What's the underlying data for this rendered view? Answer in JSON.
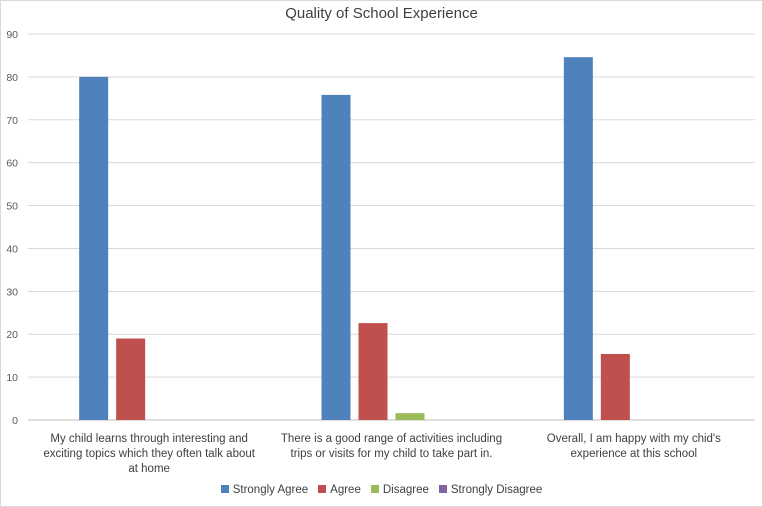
{
  "chart_data": {
    "type": "bar",
    "title": "Quality of School Experience",
    "xlabel": "",
    "ylabel": "",
    "ylim": [
      0,
      90
    ],
    "yticks": [
      0,
      10,
      20,
      30,
      40,
      50,
      60,
      70,
      80,
      90
    ],
    "grid": true,
    "legend_position": "bottom",
    "categories": [
      [
        "My child learns through interesting and",
        "exciting topics which they often talk about",
        "at home"
      ],
      [
        "There is a good range of activities including",
        "trips or visits for my child to take part in."
      ],
      [
        "Overall, I am happy with my chid's",
        "experience at this school"
      ]
    ],
    "series": [
      {
        "name": "Strongly Agree",
        "color": "#4f81bd",
        "values": [
          80,
          75.8,
          84.6
        ]
      },
      {
        "name": "Agree",
        "color": "#c0504d",
        "values": [
          19,
          22.6,
          15.4
        ]
      },
      {
        "name": "Disagree",
        "color": "#9bbb59",
        "values": [
          0,
          1.6,
          0
        ]
      },
      {
        "name": "Strongly Disagree",
        "color": "#8064a2",
        "values": [
          0,
          0,
          0
        ]
      }
    ]
  }
}
